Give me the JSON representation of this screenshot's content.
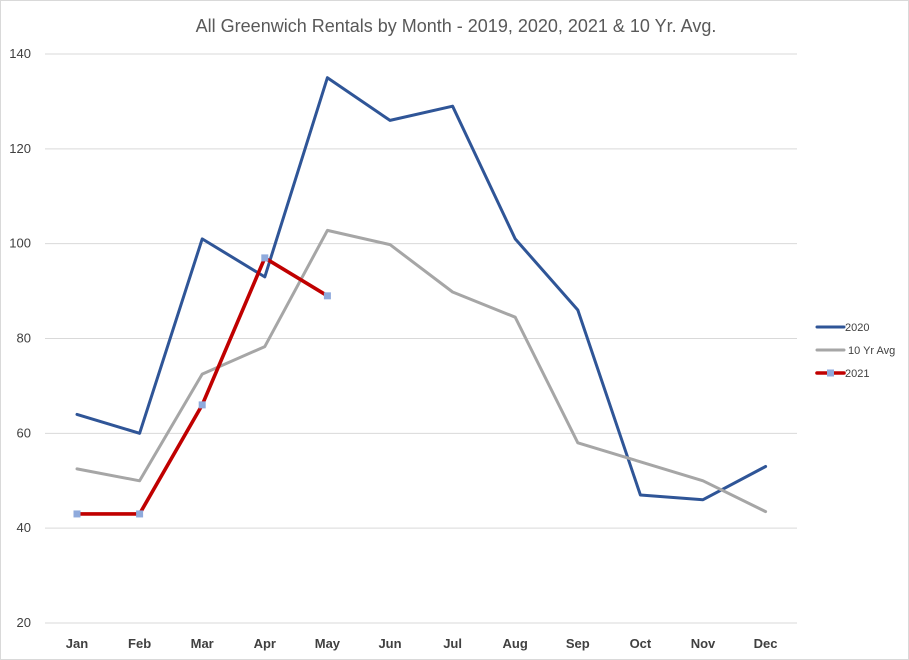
{
  "chart_data": {
    "type": "line",
    "title": "All Greenwich Rentals by Month  - 2019, 2020, 2021 & 10 Yr. Avg.",
    "categories": [
      "Jan",
      "Feb",
      "Mar",
      "Apr",
      "May",
      "Jun",
      "Jul",
      "Aug",
      "Sep",
      "Oct",
      "Nov",
      "Dec"
    ],
    "ylim": [
      20,
      140
    ],
    "yticks": [
      20,
      40,
      60,
      80,
      100,
      120,
      140
    ],
    "grid": true,
    "legend": "right",
    "series": [
      {
        "name": "2020",
        "color": "#2f5597",
        "marker": false,
        "values": [
          64,
          60,
          101,
          93,
          135,
          126,
          129,
          101,
          86,
          47,
          46,
          53
        ]
      },
      {
        "name": "10 Yr Avg",
        "color": "#a6a6a6",
        "marker": false,
        "values": [
          52.5,
          50,
          72.5,
          78.3,
          102.8,
          99.8,
          89.8,
          84.5,
          58,
          54,
          50,
          43.5
        ]
      },
      {
        "name": "2021",
        "color": "#c00000",
        "marker": true,
        "marker_color": "#8faadc",
        "values": [
          43,
          43,
          66,
          97,
          89,
          null,
          null,
          null,
          null,
          null,
          null,
          null
        ]
      }
    ]
  }
}
